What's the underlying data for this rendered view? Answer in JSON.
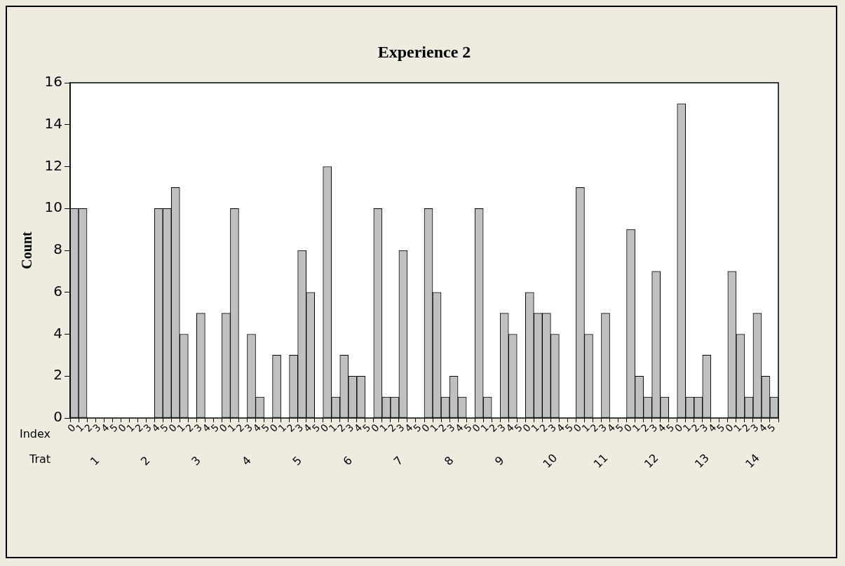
{
  "chart_data": {
    "type": "bar",
    "title": "Experience 2",
    "ylabel": "Count",
    "xlabel": "Trat",
    "annotations": [
      "Index",
      "1",
      "2",
      "3",
      "4",
      "5",
      "6",
      "7",
      "8",
      "9",
      "10",
      "11",
      "12",
      "13",
      "14"
    ],
    "categories": [
      "0",
      "1",
      "2",
      "3",
      "4",
      "5",
      "0",
      "1",
      "2",
      "3",
      "4",
      "5",
      "0",
      "1",
      "2",
      "3",
      "4",
      "5",
      "0",
      "1",
      "2",
      "3",
      "4",
      "5",
      "0",
      "1",
      "2",
      "3",
      "4",
      "5",
      "0",
      "1",
      "2",
      "3",
      "4",
      "5",
      "0",
      "1",
      "2",
      "3",
      "4",
      "5",
      "0",
      "1",
      "2",
      "3",
      "4",
      "5",
      "0",
      "1",
      "2",
      "3",
      "4",
      "5",
      "0",
      "1",
      "2",
      "3",
      "4",
      "5",
      "0",
      "1",
      "2",
      "3",
      "4",
      "5",
      "0",
      "1",
      "2",
      "3",
      "4",
      "5",
      "0",
      "1",
      "2",
      "3",
      "4",
      "5",
      "0",
      "1",
      "2",
      "3",
      "4",
      "5"
    ],
    "color": "#c0c0c0",
    "values": [
      10,
      10,
      0,
      0,
      0,
      0,
      0,
      0,
      0,
      0,
      10,
      10,
      11,
      4,
      0,
      5,
      0,
      0,
      5,
      10,
      0,
      4,
      1,
      0,
      3,
      0,
      3,
      8,
      6,
      0,
      12,
      1,
      3,
      2,
      2,
      0,
      10,
      1,
      1,
      8,
      0,
      0,
      10,
      6,
      1,
      2,
      1,
      0,
      10,
      1,
      0,
      5,
      4,
      0,
      6,
      5,
      5,
      4,
      0,
      0,
      11,
      4,
      0,
      5,
      0,
      0,
      9,
      2,
      1,
      7,
      1,
      0,
      15,
      1,
      1,
      3,
      0,
      0,
      7,
      4,
      1,
      5,
      2,
      1
    ],
    "ylim": [
      0,
      16
    ],
    "yticks": [
      0,
      2,
      4,
      6,
      8,
      10,
      12,
      14,
      16
    ]
  }
}
